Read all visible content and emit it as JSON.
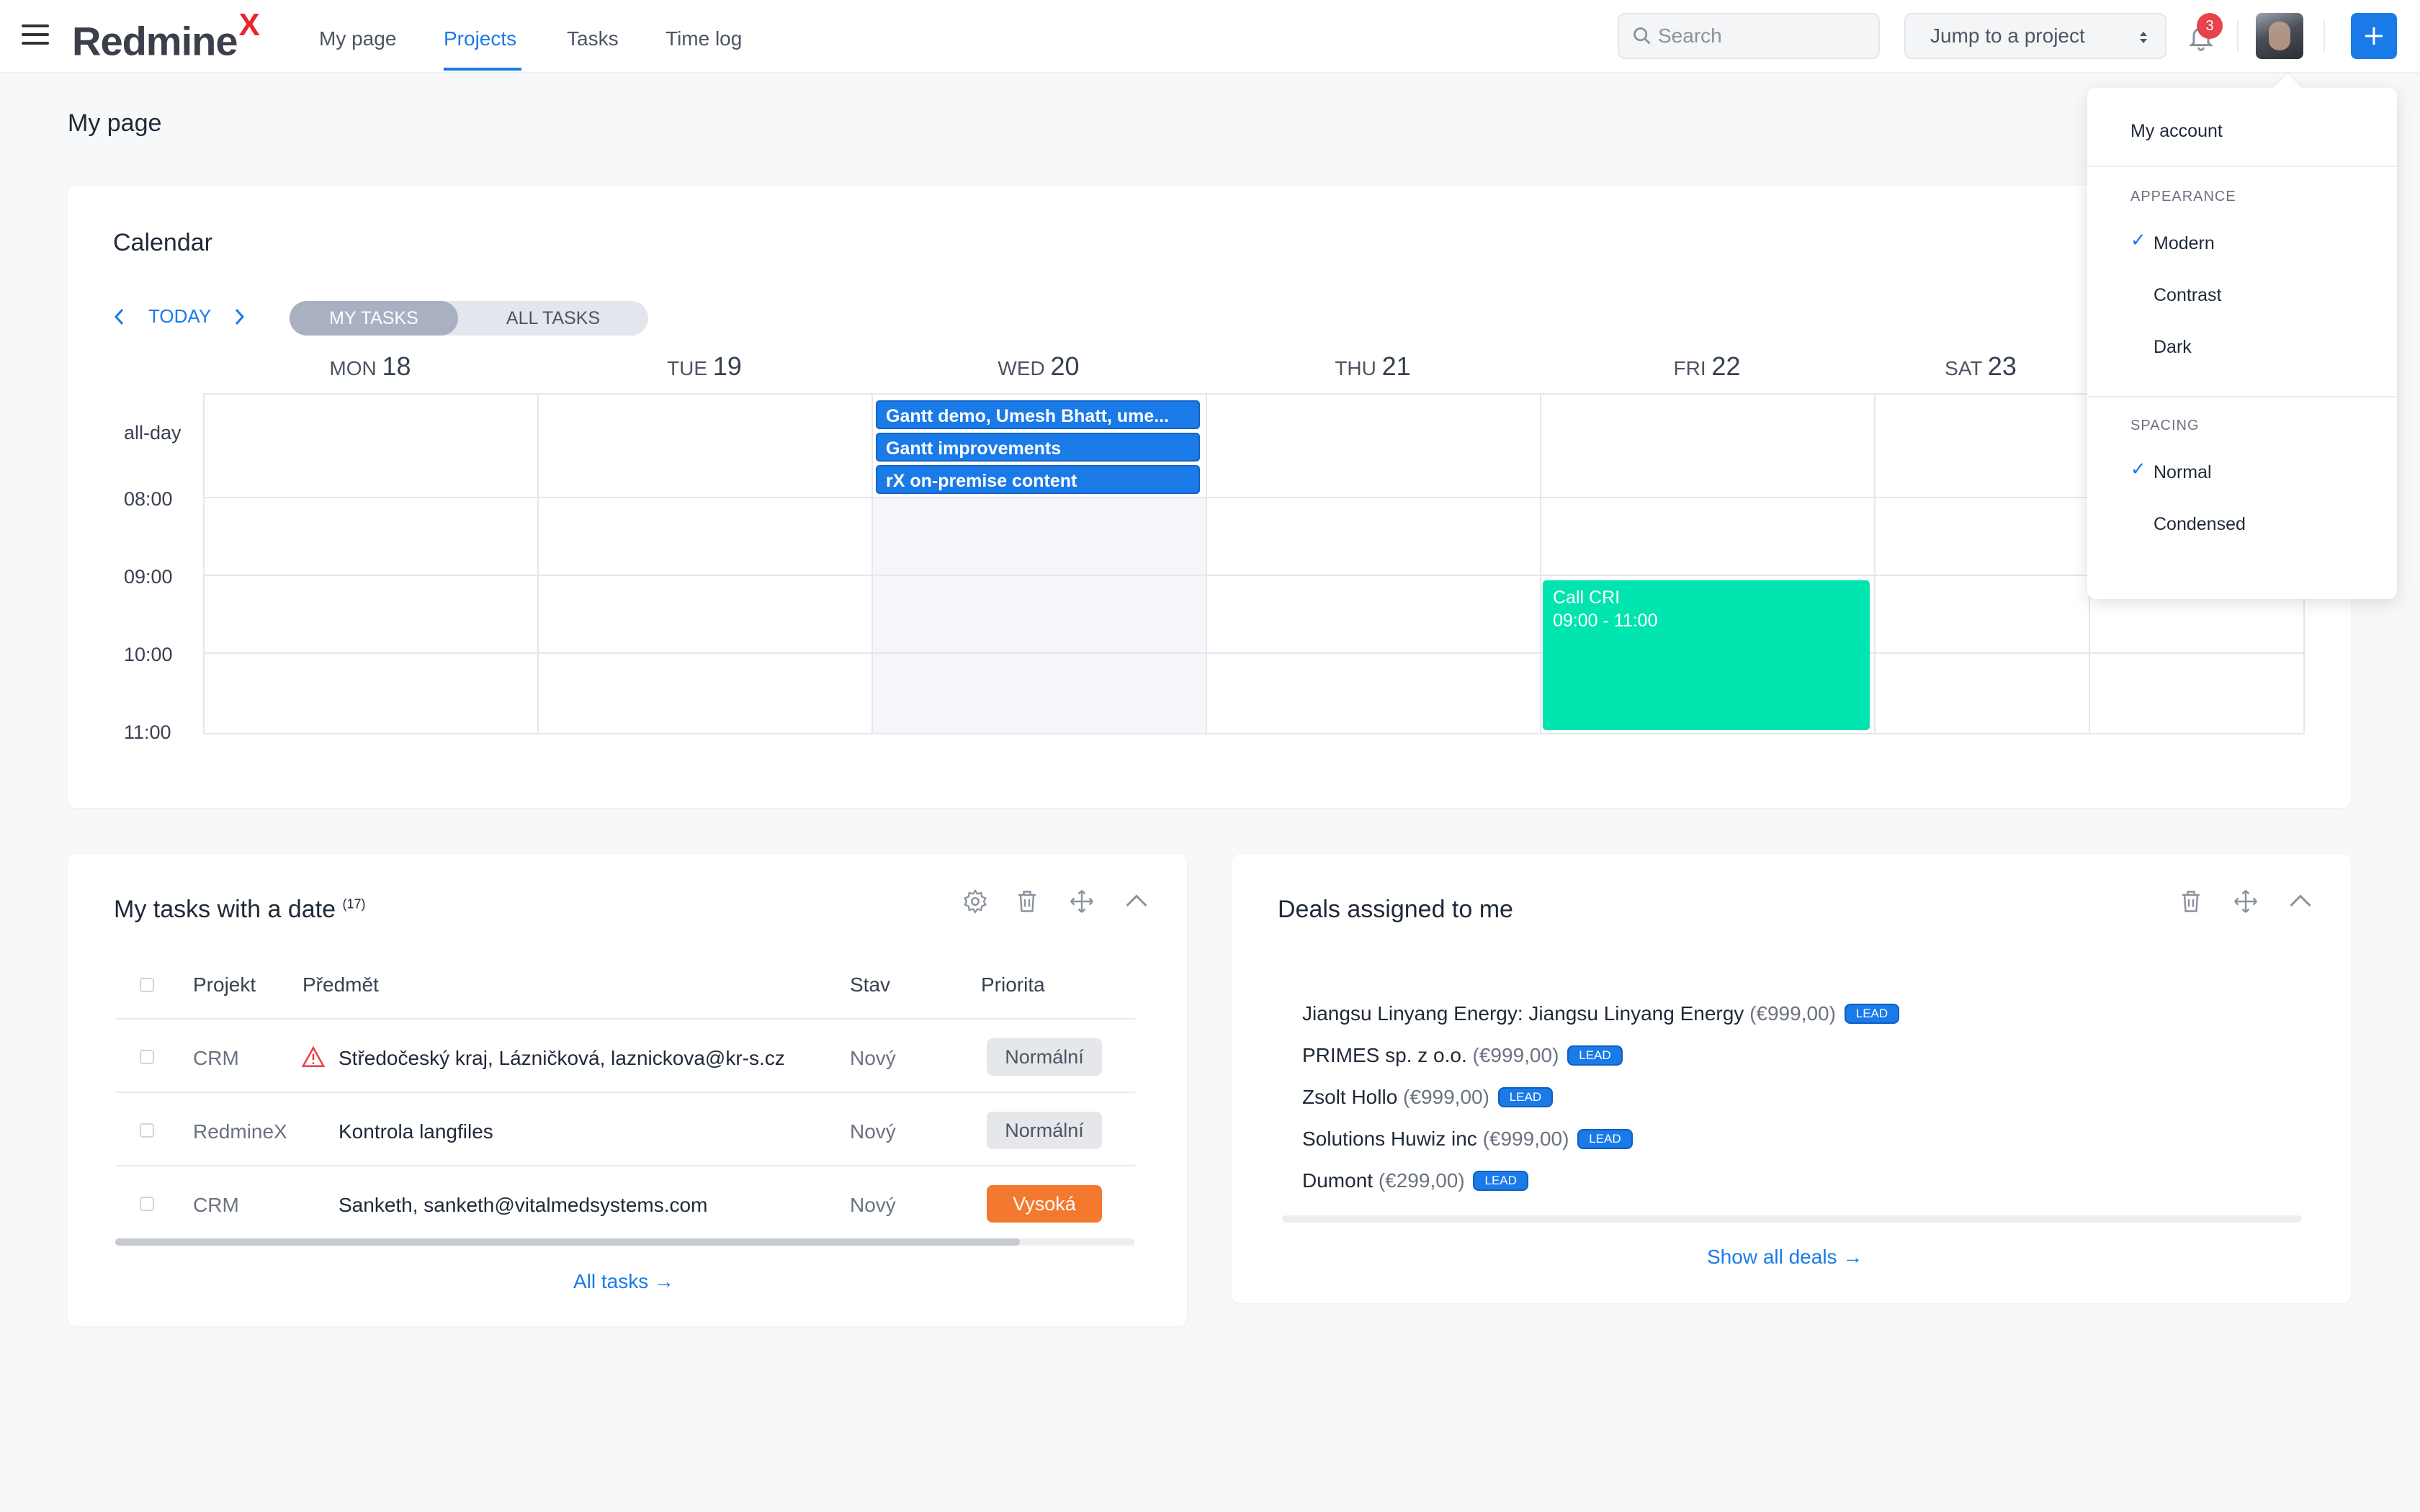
{
  "header": {
    "logo_text": "Redmine",
    "logo_mark": "X",
    "nav": [
      "My page",
      "Projects",
      "Tasks",
      "Time log"
    ],
    "active_nav": "Projects",
    "search_placeholder": "Search",
    "jump_label": "Jump to a project",
    "notification_count": "3"
  },
  "page": {
    "title": "My page"
  },
  "calendar": {
    "title": "Calendar",
    "today_label": "TODAY",
    "toggle": [
      "MY TASKS",
      "ALL TASKS"
    ],
    "days": [
      {
        "dow": "MON",
        "num": "18"
      },
      {
        "dow": "TUE",
        "num": "19"
      },
      {
        "dow": "WED",
        "num": "20"
      },
      {
        "dow": "THU",
        "num": "21"
      },
      {
        "dow": "FRI",
        "num": "22"
      },
      {
        "dow": "SAT",
        "num": "23"
      }
    ],
    "rows": [
      "all-day",
      "08:00",
      "09:00",
      "10:00",
      "11:00"
    ],
    "allday_events": [
      "Gantt demo, Umesh Bhatt, ume...",
      "Gantt improvements",
      "rX on-premise content"
    ],
    "timed_event": {
      "title": "Call CRI",
      "time": "09:00 - 11:00"
    }
  },
  "tasks": {
    "title": "My tasks with a date",
    "count": "(17)",
    "columns": [
      "Projekt",
      "Předmět",
      "Stav",
      "Priorita"
    ],
    "rows": [
      {
        "project": "CRM",
        "subject": "Středočeský kraj, Lázničková, laznickova@kr-s.cz",
        "status": "Nový",
        "priority": "Normální"
      },
      {
        "project": "RedmineX",
        "subject": "Kontrola langfiles",
        "status": "Nový",
        "priority": "Normální"
      },
      {
        "project": "CRM",
        "subject": "Sanketh, sanketh@vitalmedsystems.com",
        "status": "Nový",
        "priority": "Vysoká"
      }
    ],
    "all_link": "All tasks"
  },
  "deals": {
    "title": "Deals assigned to me",
    "items": [
      {
        "name": "Jiangsu Linyang Energy: Jiangsu Linyang Energy",
        "amount": "(€999,00)",
        "tag": "LEAD"
      },
      {
        "name": "PRIMES sp. z o.o.",
        "amount": "(€999,00)",
        "tag": "LEAD"
      },
      {
        "name": "Zsolt Hollo",
        "amount": "(€999,00)",
        "tag": "LEAD"
      },
      {
        "name": "Solutions Huwiz inc",
        "amount": "(€999,00)",
        "tag": "LEAD"
      },
      {
        "name": "Dumont",
        "amount": "(€299,00)",
        "tag": "LEAD"
      }
    ],
    "all_link": "Show all deals"
  },
  "dropdown": {
    "my_account": "My account",
    "appearance_label": "APPEARANCE",
    "appearance": [
      "Modern",
      "Contrast",
      "Dark"
    ],
    "appearance_selected": "Modern",
    "spacing_label": "SPACING",
    "spacing": [
      "Normal",
      "Condensed"
    ],
    "spacing_selected": "Normal"
  }
}
